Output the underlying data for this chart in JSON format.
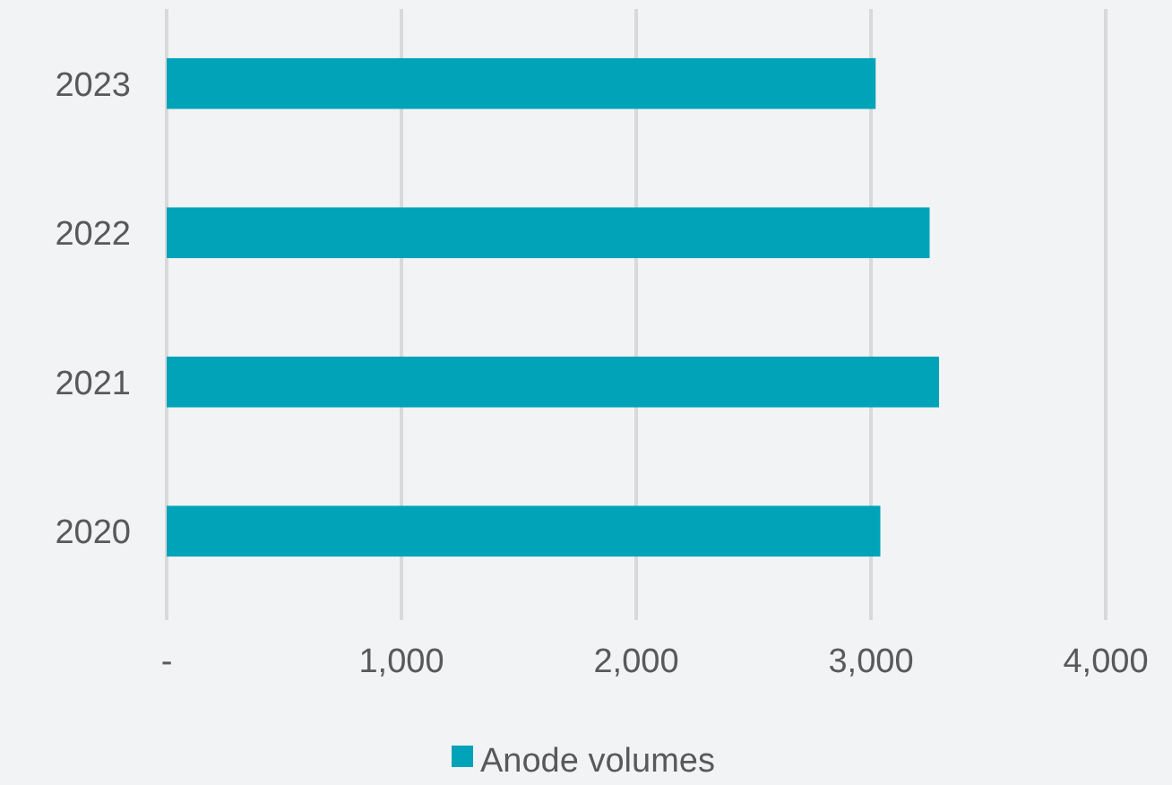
{
  "chart_data": {
    "type": "bar",
    "orientation": "horizontal",
    "categories": [
      "2023",
      "2022",
      "2021",
      "2020"
    ],
    "series": [
      {
        "name": "Anode volumes",
        "color": "#00a3b8",
        "values": [
          3020,
          3250,
          3290,
          3040
        ]
      }
    ],
    "xlim": [
      0,
      4000
    ],
    "xticks": [
      {
        "value": 0,
        "label": "-"
      },
      {
        "value": 1000,
        "label": "1,000"
      },
      {
        "value": 2000,
        "label": "2,000"
      },
      {
        "value": 3000,
        "label": "3,000"
      },
      {
        "value": 4000,
        "label": "4,000"
      }
    ],
    "grid": "x",
    "legend": "bottom"
  }
}
